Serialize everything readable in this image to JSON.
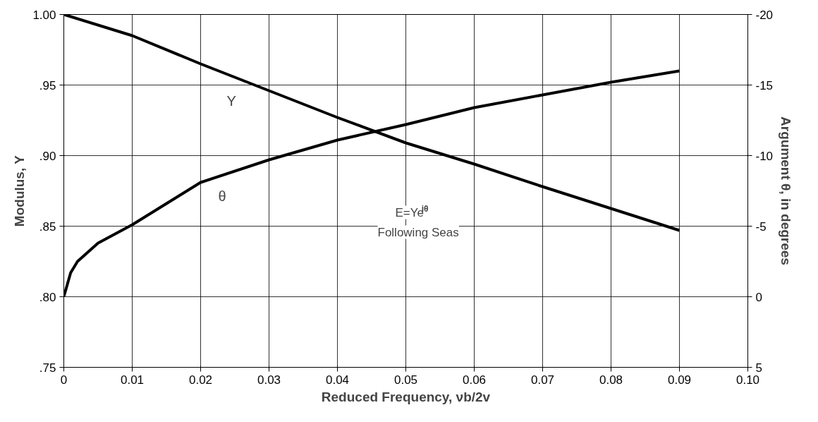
{
  "chart_data": {
    "type": "line",
    "xlabel": "Reduced Frequency, νb/2v",
    "ylabel": "Modulus, Y",
    "y2label": "Argument θ, in degrees",
    "x": [
      0,
      0.01,
      0.02,
      0.03,
      0.04,
      0.05,
      0.06,
      0.07,
      0.08,
      0.09
    ],
    "series": [
      {
        "name": "Y",
        "color": "#000000",
        "values": [
          1.0,
          0.985,
          0.965,
          0.946,
          0.927,
          0.909,
          0.894,
          0.878,
          0.8625,
          0.847
        ]
      },
      {
        "name": "θ",
        "color": "#000000",
        "axis": "y2",
        "x": [
          0,
          0.001,
          0.002,
          0.005,
          0.01,
          0.015,
          0.02,
          0.03,
          0.04,
          0.05,
          0.06,
          0.07,
          0.08,
          0.09
        ],
        "values": [
          0,
          -1.7,
          -2.5,
          -3.8,
          -5.1,
          -6.6,
          -8.1,
          -9.7,
          -11.1,
          -12.2,
          -13.4,
          -14.3,
          -15.2,
          -16.0
        ]
      }
    ],
    "xlim": [
      0,
      0.1
    ],
    "xticks": [
      0,
      0.01,
      0.02,
      0.03,
      0.04,
      0.05,
      0.06,
      0.07,
      0.08,
      0.09,
      {
        "value": 0.1,
        "label": "0.10"
      }
    ],
    "ylim": [
      0.75,
      1.0
    ],
    "yticks": [
      {
        "value": 0.75,
        "label": ".75"
      },
      {
        "value": 0.8,
        "label": ".80"
      },
      {
        "value": 0.85,
        "label": ".85"
      },
      {
        "value": 0.9,
        "label": ".90"
      },
      {
        "value": 0.95,
        "label": ".95"
      },
      {
        "value": 1.0,
        "label": "1.00"
      }
    ],
    "y2lim": [
      5,
      -20
    ],
    "y2ticks": [
      5,
      0,
      -5,
      -10,
      -15,
      -20
    ],
    "grid": true,
    "legend": false,
    "marker": "none",
    "line_style": "solid",
    "annotations": [
      "E=Ye$^{iθ}$",
      "Following Seas"
    ]
  }
}
